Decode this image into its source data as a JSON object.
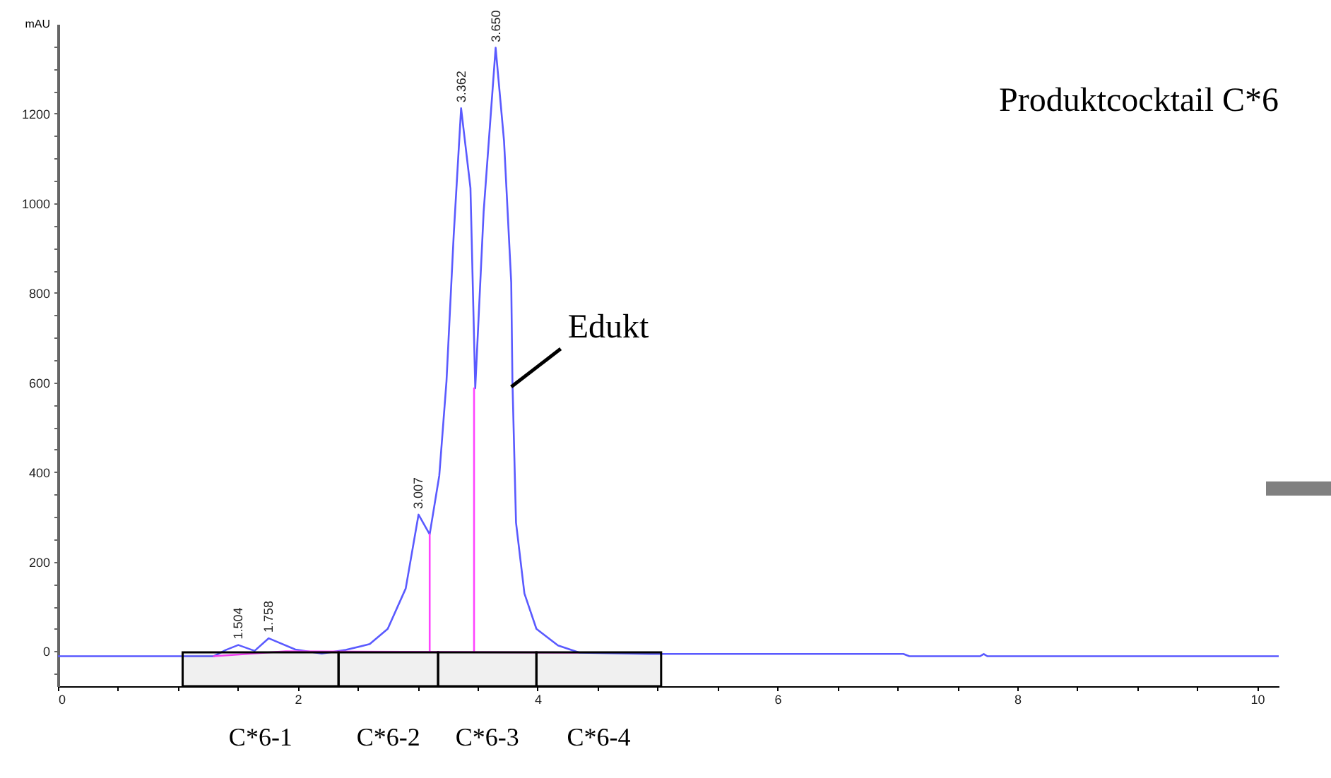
{
  "chart_data": {
    "type": "line",
    "title": "Produktcocktail C*6",
    "ylabel": "mAU",
    "xlim": [
      0,
      10.18
    ],
    "ylim": [
      -78,
      1400
    ],
    "xticks": [
      0,
      {
        "value": 0.5,
        "label": null
      },
      {
        "value": 1,
        "label": null
      },
      {
        "value": 1.5,
        "label": null
      },
      2,
      {
        "value": 2.5,
        "label": null
      },
      {
        "value": 3,
        "label": null
      },
      {
        "value": 3.5,
        "label": null
      },
      4,
      {
        "value": 4.5,
        "label": null
      },
      {
        "value": 5,
        "label": null
      },
      {
        "value": 5.5,
        "label": null
      },
      6,
      {
        "value": 6.5,
        "label": null
      },
      {
        "value": 7,
        "label": null
      },
      {
        "value": 7.5,
        "label": null
      },
      8,
      {
        "value": 8.5,
        "label": null
      },
      {
        "value": 9,
        "label": null
      },
      {
        "value": 9.5,
        "label": null
      },
      10
    ],
    "yticks": [
      {
        "value": -50,
        "label": null
      },
      0,
      {
        "value": 50,
        "label": null
      },
      {
        "value": 100,
        "label": null
      },
      {
        "value": 150,
        "label": null
      },
      200,
      {
        "value": 250,
        "label": null
      },
      {
        "value": 300,
        "label": null
      },
      {
        "value": 350,
        "label": null
      },
      400,
      {
        "value": 450,
        "label": null
      },
      {
        "value": 500,
        "label": null
      },
      {
        "value": 550,
        "label": null
      },
      600,
      {
        "value": 650,
        "label": null
      },
      {
        "value": 700,
        "label": null
      },
      {
        "value": 750,
        "label": null
      },
      800,
      {
        "value": 850,
        "label": null
      },
      {
        "value": 900,
        "label": null
      },
      {
        "value": 950,
        "label": null
      },
      1000,
      {
        "value": 1050,
        "label": null
      },
      {
        "value": 1100,
        "label": null
      },
      {
        "value": 1150,
        "label": null
      },
      1200,
      {
        "value": 1250,
        "label": null
      },
      {
        "value": 1300,
        "label": null
      },
      {
        "value": 1350,
        "label": null
      }
    ],
    "grid": false,
    "marker": "none",
    "line_style": "solid",
    "series": [
      {
        "color": "#5a5aff",
        "x": [
          0,
          1.3,
          1.4,
          1.504,
          1.64,
          1.758,
          1.98,
          2.2,
          2.4,
          2.6,
          2.75,
          2.9,
          3.007,
          3.1,
          3.18,
          3.24,
          3.3,
          3.362,
          3.44,
          3.48,
          3.55,
          3.65,
          3.72,
          3.78,
          3.79,
          3.82,
          3.89,
          3.99,
          4.17,
          4.35,
          4.93,
          7.05,
          7.1,
          7.69,
          7.72,
          7.75,
          10.18
        ],
        "values": [
          -11,
          -11,
          3,
          14,
          1,
          29,
          4,
          -5,
          3,
          16,
          50,
          140,
          305,
          261,
          392,
          602,
          927,
          1212,
          1034,
          587,
          981,
          1347,
          1139,
          823,
          603,
          287,
          129,
          50,
          13,
          -3,
          -6,
          -6,
          -11,
          -11,
          -6,
          -11,
          -11
        ]
      },
      {
        "color": "#ff44ff",
        "x": [
          1.3,
          1.9,
          4.34
        ],
        "values": [
          -11,
          0,
          -3
        ]
      },
      {
        "color": "#ff44ff",
        "x": [
          3.1,
          3.1
        ],
        "values": [
          0,
          261
        ]
      },
      {
        "color": "#ff44ff",
        "x": [
          3.47,
          3.47
        ],
        "values": [
          0,
          587
        ]
      }
    ],
    "annotations": [
      {
        "text": "1.504",
        "x": 1.504,
        "y": 14
      },
      {
        "text": "1.758",
        "x": 1.758,
        "y": 29
      },
      {
        "text": "3.007",
        "x": 3.007,
        "y": 305
      },
      {
        "text": "3.362",
        "x": 3.362,
        "y": 1212
      },
      {
        "text": "3.650",
        "x": 3.65,
        "y": 1347
      },
      {
        "text": "Edukt",
        "x": 3.78,
        "y": 590
      }
    ],
    "bands": [
      {
        "axis": "x",
        "from": 1.04,
        "to": 2.34,
        "label": "C*6-1",
        "color": "#000000"
      },
      {
        "axis": "x",
        "from": 2.34,
        "to": 3.17,
        "label": "C*6-2",
        "color": "#000000"
      },
      {
        "axis": "x",
        "from": 3.17,
        "to": 3.99,
        "label": "C*6-3",
        "color": "#000000"
      },
      {
        "axis": "x",
        "from": 3.99,
        "to": 5.03,
        "label": "C*6-4",
        "color": "#000000"
      }
    ]
  }
}
